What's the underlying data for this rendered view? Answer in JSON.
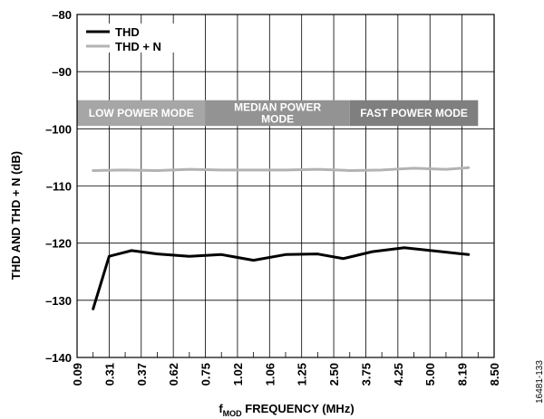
{
  "figure_id": "16481-133",
  "chart_data": {
    "type": "line",
    "xlabel_main": "f",
    "xlabel_sub": "MOD",
    "xlabel_rest": " FREQUENCY (MHz)",
    "ylabel": "THD AND THD + N (dB)",
    "ylim": [
      -140,
      -80
    ],
    "yticks": [
      -80,
      -90,
      -100,
      -110,
      -120,
      -130,
      -140
    ],
    "ytick_labels": [
      "–80",
      "–90",
      "–100",
      "–110",
      "–120",
      "–130",
      "–140"
    ],
    "categories": [
      "0.09",
      "0.31",
      "0.37",
      "0.62",
      "0.75",
      "1.02",
      "1.06",
      "1.25",
      "2.50",
      "3.75",
      "4.25",
      "5.00",
      "8.19",
      "8.50"
    ],
    "grid": true,
    "legend_position": "top-left",
    "series": [
      {
        "name": "THD",
        "color": "#000000",
        "x": [
          0.5,
          1.0,
          1.7,
          2.5,
          3.5,
          4.5,
          5.5,
          6.5,
          7.5,
          8.3,
          9.2,
          10.2,
          11.2,
          12.2
        ],
        "values": [
          -131.5,
          -122.3,
          -121.3,
          -121.9,
          -122.3,
          -122.0,
          -123.0,
          -122.0,
          -121.9,
          -122.7,
          -121.5,
          -120.8,
          -121.4,
          -122.0
        ]
      },
      {
        "name": "THD + N",
        "color": "#b3b3b3",
        "x": [
          0.5,
          1.5,
          2.5,
          3.5,
          4.5,
          5.5,
          6.5,
          7.5,
          8.5,
          9.5,
          10.5,
          11.5,
          12.2
        ],
        "values": [
          -107.3,
          -107.2,
          -107.3,
          -107.1,
          -107.2,
          -107.2,
          -107.2,
          -107.1,
          -107.3,
          -107.2,
          -106.9,
          -107.1,
          -106.8
        ]
      }
    ],
    "mode_bands": [
      {
        "label_lines": [
          "LOW POWER MODE"
        ],
        "x_start": 0,
        "x_end": 4,
        "color": "#a6a6a6"
      },
      {
        "label_lines": [
          "MEDIAN POWER",
          "MODE"
        ],
        "x_start": 4,
        "x_end": 8.5,
        "color": "#939393"
      },
      {
        "label_lines": [
          "FAST POWER MODE"
        ],
        "x_start": 8.5,
        "x_end": 12.5,
        "color": "#7f7f7f"
      }
    ],
    "bands_yrange": [
      -95,
      -99.5
    ]
  }
}
